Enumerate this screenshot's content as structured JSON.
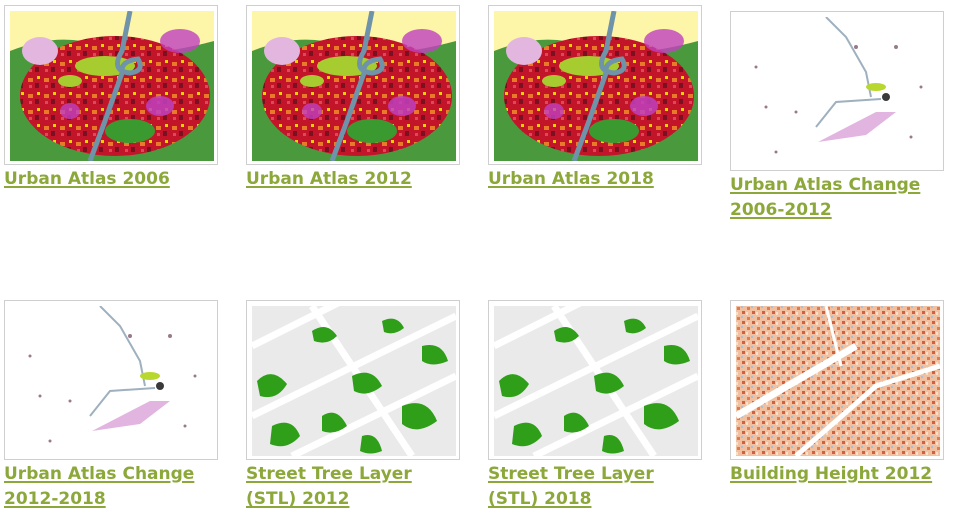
{
  "gallery": {
    "items": [
      {
        "line1": "Urban Atlas 2006",
        "line2": "",
        "thumb": "urban-atlas-map"
      },
      {
        "line1": "Urban Atlas 2012",
        "line2": "",
        "thumb": "urban-atlas-map"
      },
      {
        "line1": "Urban Atlas 2018",
        "line2": "",
        "thumb": "urban-atlas-map"
      },
      {
        "line1": "Urban Atlas Change",
        "line2": "2006-2012",
        "thumb": "change-map"
      },
      {
        "line1": "Urban Atlas Change",
        "line2": "2012-2018",
        "thumb": "change-map"
      },
      {
        "line1": "Street Tree Layer",
        "line2": "(STL) 2012",
        "thumb": "street-tree-map"
      },
      {
        "line1": "Street Tree Layer",
        "line2": "(STL) 2018",
        "thumb": "street-tree-map"
      },
      {
        "line1": "Building Height 2012",
        "line2": "",
        "thumb": "building-height-map"
      }
    ]
  },
  "colors": {
    "link": "#8ca83a",
    "thumb_border": "#cfcfcf"
  }
}
